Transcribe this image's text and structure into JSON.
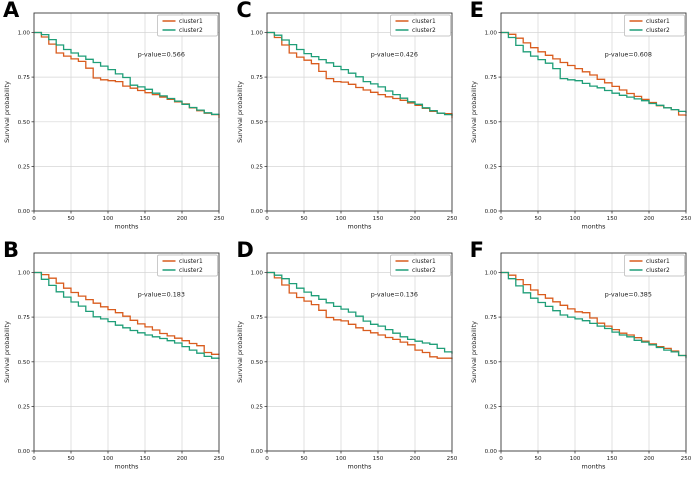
{
  "figure": {
    "background": "#ffffff",
    "colors": {
      "cluster1": "#d95c1e",
      "cluster2": "#1f9e78",
      "grid": "#d6d6d6",
      "spine": "#3a3a3a",
      "text": "#1a1a1a",
      "legend_border": "#b5b5b5",
      "panel_letter": "#000000"
    },
    "axes": {
      "xlabel": "months",
      "ylabel": "Survival probability",
      "xlim": [
        0,
        250
      ],
      "ylim": [
        0.0,
        1.08
      ],
      "xticks": [
        0,
        50,
        100,
        150,
        200,
        250
      ],
      "xtick_labels": [
        "0",
        "50",
        "100",
        "150",
        "200",
        "250"
      ],
      "yticks": [
        0.0,
        0.25,
        0.5,
        0.75,
        1.0
      ],
      "ytick_labels": [
        "0.00",
        "0.25",
        "0.50",
        "0.75",
        "1.00"
      ],
      "grid": true
    },
    "legend": {
      "position": "upper-right",
      "entries": [
        {
          "label": "cluster1",
          "color_key": "cluster1"
        },
        {
          "label": "cluster2",
          "color_key": "cluster2"
        }
      ]
    },
    "months_x": [
      0,
      10,
      20,
      30,
      40,
      50,
      60,
      70,
      80,
      90,
      100,
      110,
      120,
      130,
      140,
      150,
      160,
      170,
      180,
      190,
      200,
      210,
      220,
      230,
      240,
      250
    ]
  },
  "chart_data": [
    {
      "type": "line",
      "panel_label": "A",
      "p_value_label": "p-value=0.566",
      "xlabel": "months",
      "ylabel": "Survival probability",
      "x_ref": "months_x",
      "series": [
        {
          "name": "cluster1",
          "y": [
            1.0,
            0.975,
            0.935,
            0.885,
            0.868,
            0.852,
            0.838,
            0.8,
            0.745,
            0.735,
            0.73,
            0.725,
            0.7,
            0.688,
            0.675,
            0.663,
            0.652,
            0.638,
            0.625,
            0.612,
            0.6,
            0.578,
            0.562,
            0.548,
            0.54,
            0.521
          ]
        },
        {
          "name": "cluster2",
          "y": [
            1.0,
            0.988,
            0.96,
            0.93,
            0.905,
            0.885,
            0.868,
            0.85,
            0.832,
            0.812,
            0.792,
            0.768,
            0.748,
            0.705,
            0.695,
            0.682,
            0.66,
            0.645,
            0.63,
            0.615,
            0.598,
            0.58,
            0.565,
            0.55,
            0.542,
            0.54
          ]
        }
      ]
    },
    {
      "type": "line",
      "panel_label": "C",
      "p_value_label": "p-value=0.426",
      "xlabel": "months",
      "ylabel": "Survival probability",
      "x_ref": "months_x",
      "series": [
        {
          "name": "cluster1",
          "y": [
            1.0,
            0.972,
            0.93,
            0.885,
            0.862,
            0.845,
            0.825,
            0.782,
            0.742,
            0.725,
            0.722,
            0.71,
            0.692,
            0.678,
            0.665,
            0.652,
            0.64,
            0.63,
            0.62,
            0.605,
            0.592,
            0.575,
            0.558,
            0.548,
            0.545,
            0.52
          ]
        },
        {
          "name": "cluster2",
          "y": [
            1.0,
            0.985,
            0.958,
            0.932,
            0.905,
            0.882,
            0.865,
            0.848,
            0.83,
            0.81,
            0.792,
            0.772,
            0.752,
            0.725,
            0.712,
            0.695,
            0.672,
            0.652,
            0.632,
            0.612,
            0.598,
            0.578,
            0.562,
            0.548,
            0.54,
            0.532
          ]
        }
      ]
    },
    {
      "type": "line",
      "panel_label": "E",
      "p_value_label": "p-value=0.608",
      "xlabel": "months",
      "ylabel": "Survival probability",
      "x_ref": "months_x",
      "series": [
        {
          "name": "cluster1",
          "y": [
            1.0,
            0.99,
            0.968,
            0.942,
            0.915,
            0.892,
            0.872,
            0.852,
            0.832,
            0.815,
            0.798,
            0.78,
            0.762,
            0.738,
            0.718,
            0.698,
            0.678,
            0.658,
            0.642,
            0.625,
            0.608,
            0.59,
            0.578,
            0.568,
            0.538,
            0.532
          ]
        },
        {
          "name": "cluster2",
          "y": [
            1.0,
            0.972,
            0.928,
            0.892,
            0.868,
            0.848,
            0.828,
            0.798,
            0.742,
            0.735,
            0.73,
            0.715,
            0.7,
            0.69,
            0.675,
            0.66,
            0.648,
            0.638,
            0.628,
            0.618,
            0.602,
            0.592,
            0.578,
            0.568,
            0.558,
            0.548
          ]
        }
      ]
    },
    {
      "type": "line",
      "panel_label": "B",
      "p_value_label": "p-value=0.183",
      "xlabel": "months",
      "ylabel": "Survival probability",
      "x_ref": "months_x",
      "series": [
        {
          "name": "cluster1",
          "y": [
            1.0,
            0.988,
            0.968,
            0.94,
            0.912,
            0.888,
            0.868,
            0.848,
            0.828,
            0.808,
            0.792,
            0.775,
            0.755,
            0.732,
            0.712,
            0.695,
            0.678,
            0.658,
            0.645,
            0.632,
            0.618,
            0.602,
            0.59,
            0.552,
            0.542,
            0.54
          ]
        },
        {
          "name": "cluster2",
          "y": [
            1.0,
            0.962,
            0.928,
            0.892,
            0.862,
            0.835,
            0.812,
            0.782,
            0.752,
            0.74,
            0.725,
            0.705,
            0.69,
            0.675,
            0.662,
            0.65,
            0.64,
            0.63,
            0.618,
            0.605,
            0.585,
            0.565,
            0.548,
            0.53,
            0.52,
            0.515
          ]
        }
      ]
    },
    {
      "type": "line",
      "panel_label": "D",
      "p_value_label": "p-value=0.136",
      "xlabel": "months",
      "ylabel": "Survival probability",
      "x_ref": "months_x",
      "series": [
        {
          "name": "cluster1",
          "y": [
            1.0,
            0.97,
            0.93,
            0.885,
            0.86,
            0.84,
            0.82,
            0.788,
            0.748,
            0.735,
            0.729,
            0.71,
            0.69,
            0.675,
            0.662,
            0.65,
            0.636,
            0.625,
            0.61,
            0.595,
            0.565,
            0.552,
            0.528,
            0.52,
            0.52,
            0.515
          ]
        },
        {
          "name": "cluster2",
          "y": [
            1.0,
            0.985,
            0.965,
            0.938,
            0.912,
            0.89,
            0.87,
            0.85,
            0.83,
            0.81,
            0.795,
            0.778,
            0.755,
            0.728,
            0.71,
            0.7,
            0.68,
            0.66,
            0.64,
            0.625,
            0.615,
            0.605,
            0.598,
            0.575,
            0.555,
            0.545
          ]
        }
      ]
    },
    {
      "type": "line",
      "panel_label": "F",
      "p_value_label": "p-value=0.385",
      "xlabel": "months",
      "ylabel": "Survival probability",
      "x_ref": "months_x",
      "series": [
        {
          "name": "cluster1",
          "y": [
            1.0,
            0.985,
            0.96,
            0.932,
            0.902,
            0.876,
            0.856,
            0.836,
            0.816,
            0.796,
            0.78,
            0.775,
            0.745,
            0.716,
            0.7,
            0.68,
            0.66,
            0.65,
            0.635,
            0.615,
            0.6,
            0.585,
            0.575,
            0.56,
            0.535,
            0.53
          ]
        },
        {
          "name": "cluster2",
          "y": [
            1.0,
            0.965,
            0.925,
            0.886,
            0.856,
            0.832,
            0.81,
            0.786,
            0.762,
            0.75,
            0.74,
            0.73,
            0.715,
            0.7,
            0.686,
            0.666,
            0.65,
            0.64,
            0.62,
            0.61,
            0.595,
            0.58,
            0.565,
            0.555,
            0.535,
            0.52
          ]
        }
      ]
    }
  ]
}
